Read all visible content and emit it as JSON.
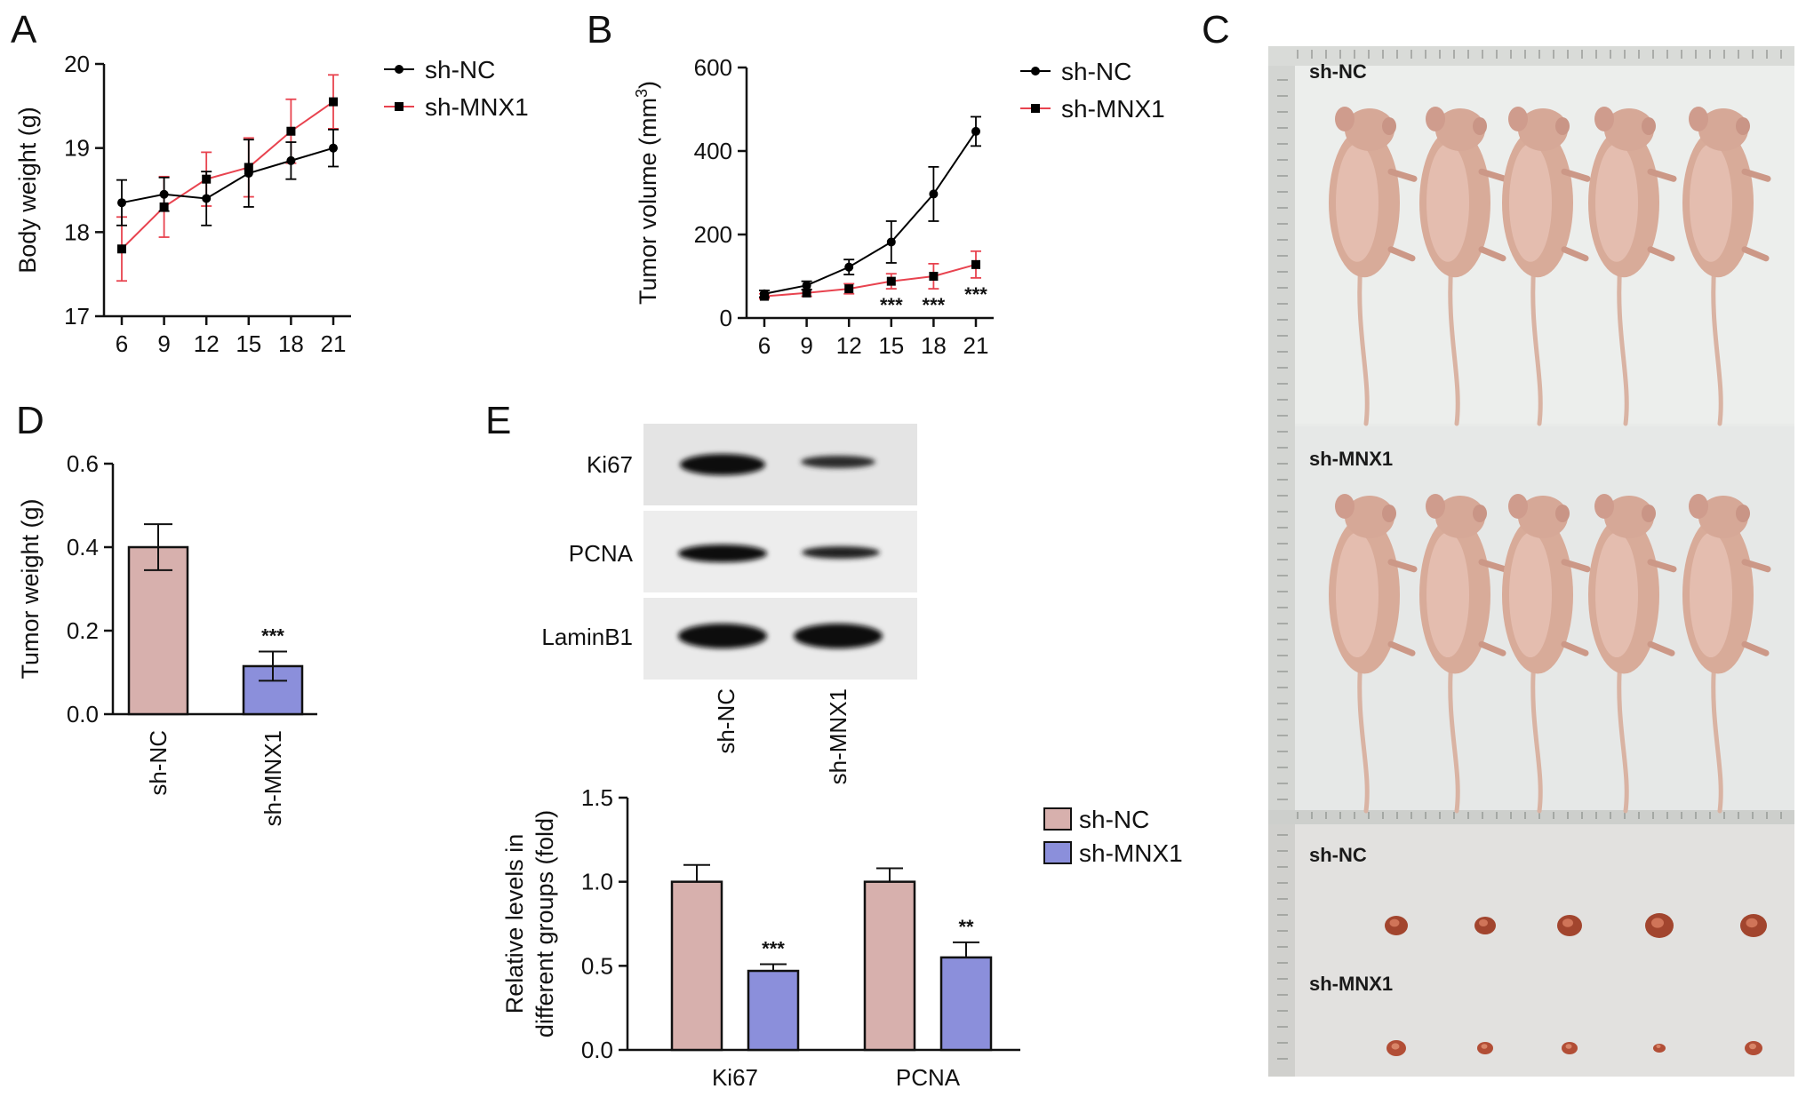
{
  "panels": {
    "A": "A",
    "B": "B",
    "C": "C",
    "D": "D",
    "E": "E"
  },
  "colors": {
    "sh_NC": "#000000",
    "sh_MNX1": "#e8434f",
    "bar_NC": "#d7b0ad",
    "bar_MNX1": "#8b8fdb"
  },
  "chart_data": [
    {
      "id": "A",
      "type": "line",
      "ylabel": "Body weight (g)",
      "xlabel": "",
      "x": [
        6,
        9,
        12,
        15,
        18,
        21
      ],
      "xticks": [
        "6",
        "9",
        "12",
        "15",
        "18",
        "21"
      ],
      "ylim": [
        17,
        20
      ],
      "yticks": [
        "17",
        "18",
        "19",
        "20"
      ],
      "legend_position": "top-right",
      "series": [
        {
          "name": "sh-NC",
          "values": [
            18.35,
            18.45,
            18.4,
            18.7,
            18.85,
            19.0
          ],
          "errors": [
            0.27,
            0.2,
            0.32,
            0.4,
            0.22,
            0.22
          ]
        },
        {
          "name": "sh-MNX1",
          "values": [
            17.8,
            18.3,
            18.63,
            18.77,
            19.2,
            19.55
          ],
          "errors": [
            0.38,
            0.36,
            0.32,
            0.35,
            0.38,
            0.32
          ]
        }
      ]
    },
    {
      "id": "B",
      "type": "line",
      "ylabel": "Tumor volume (mm",
      "ylabel_sup": "3",
      "ylabel_end": ")",
      "xlabel": "",
      "x": [
        6,
        9,
        12,
        15,
        18,
        21
      ],
      "xticks": [
        "6",
        "9",
        "12",
        "15",
        "18",
        "21"
      ],
      "ylim": [
        0,
        600
      ],
      "yticks": [
        "0",
        "200",
        "400",
        "600"
      ],
      "legend_position": "top-right",
      "significance": [
        null,
        null,
        null,
        "***",
        "***",
        "***"
      ],
      "series": [
        {
          "name": "sh-NC",
          "values": [
            58,
            78,
            122,
            182,
            297,
            447
          ],
          "errors": [
            8,
            10,
            18,
            50,
            65,
            35
          ]
        },
        {
          "name": "sh-MNX1",
          "values": [
            52,
            60,
            70,
            88,
            100,
            128
          ],
          "errors": [
            6,
            8,
            12,
            18,
            30,
            32
          ]
        }
      ]
    },
    {
      "id": "D",
      "type": "bar",
      "ylabel": "Tumor weight (g)",
      "categories": [
        "sh-NC",
        "sh-MNX1"
      ],
      "values": [
        0.4,
        0.115
      ],
      "errors": [
        0.055,
        0.035
      ],
      "significance": [
        null,
        "***"
      ],
      "ylim": [
        0,
        0.6
      ],
      "yticks": [
        "0.0",
        "0.2",
        "0.4",
        "0.6"
      ]
    },
    {
      "id": "E",
      "type": "bar",
      "ylabel_lines": [
        "Relative levels in",
        "different groups (fold)"
      ],
      "categories": [
        "Ki67",
        "PCNA"
      ],
      "legend_position": "right",
      "ylim": [
        0,
        1.5
      ],
      "yticks": [
        "0.0",
        "0.5",
        "1.0",
        "1.5"
      ],
      "series": [
        {
          "name": "sh-NC",
          "values": [
            1.0,
            1.0
          ],
          "errors": [
            0.1,
            0.08
          ]
        },
        {
          "name": "sh-MNX1",
          "values": [
            0.47,
            0.55
          ],
          "errors": [
            0.04,
            0.09
          ]
        }
      ],
      "significance": [
        "***",
        "**"
      ]
    }
  ],
  "blot": {
    "rows": [
      "Ki67",
      "PCNA",
      "LaminB1"
    ],
    "lanes": [
      "sh-NC",
      "sh-MNX1"
    ]
  },
  "photo": {
    "labels": [
      "sh-NC",
      "sh-MNX1",
      "sh-NC",
      "sh-MNX1"
    ]
  }
}
